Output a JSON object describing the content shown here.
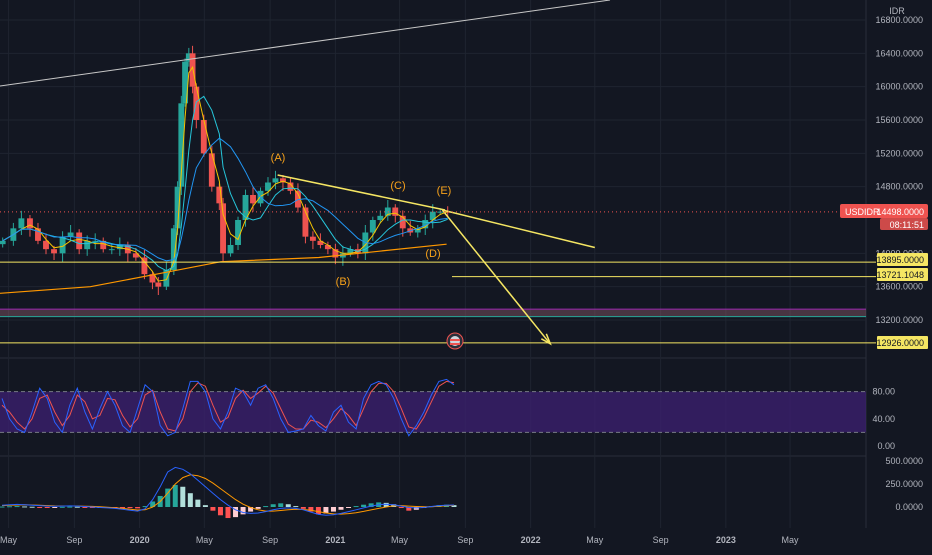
{
  "header": {
    "currency_label": "IDR"
  },
  "colors": {
    "background": "#131722",
    "grid": "#1f2430",
    "axis_text": "#b2b5be",
    "bull": "#26a69a",
    "bear": "#ef5350",
    "annotation": "#f5e663",
    "wave_label": "#f7a21b",
    "ma_orange": "#ff9800",
    "ma_blue": "#2196f3",
    "ma_teal": "#26c6da",
    "ma_yellow": "#f5c400",
    "stoch_k": "#2962ff",
    "stoch_d": "#ef5350",
    "stoch_band": "#3b1f6e",
    "price_badge": "#ef5350"
  },
  "price_badge": {
    "symbol": "USDIDR",
    "price": "14498.0000",
    "countdown": "08:11:51"
  },
  "annotations": {
    "levels": [
      "13895.0000",
      "13721.1048",
      "12926.0000"
    ],
    "wave_labels": [
      "(A)",
      "(B)",
      "(C)",
      "(D)",
      "(E)"
    ]
  },
  "chart_data": [
    {
      "type": "candlestick",
      "symbol": "USDIDR",
      "price_axis": {
        "ticks": [
          "16800.0000",
          "16400.0000",
          "16000.0000",
          "15600.0000",
          "15200.0000",
          "14800.0000",
          "14000.0000",
          "13600.0000",
          "13200.0000"
        ],
        "range": [
          12800,
          16900
        ]
      },
      "time_axis": {
        "ticks": [
          "May",
          "Sep",
          "2020",
          "May",
          "Sep",
          "2021",
          "May",
          "Sep",
          "2022",
          "May",
          "Sep",
          "2023",
          "May"
        ],
        "start": "2019-04-15",
        "end": "2023-09-20"
      },
      "series_close": [
        [
          "2019-04-20",
          14150
        ],
        [
          "2019-05-10",
          14300
        ],
        [
          "2019-05-25",
          14420
        ],
        [
          "2019-06-10",
          14300
        ],
        [
          "2019-06-25",
          14150
        ],
        [
          "2019-07-10",
          14050
        ],
        [
          "2019-07-25",
          14000
        ],
        [
          "2019-08-10",
          14200
        ],
        [
          "2019-08-25",
          14250
        ],
        [
          "2019-09-10",
          14050
        ],
        [
          "2019-09-25",
          14150
        ],
        [
          "2019-10-10",
          14150
        ],
        [
          "2019-10-25",
          14050
        ],
        [
          "2019-11-10",
          14050
        ],
        [
          "2019-11-25",
          14100
        ],
        [
          "2019-12-10",
          14000
        ],
        [
          "2019-12-25",
          13950
        ],
        [
          "2020-01-10",
          13750
        ],
        [
          "2020-01-25",
          13650
        ],
        [
          "2020-02-05",
          13600
        ],
        [
          "2020-02-20",
          13800
        ],
        [
          "2020-03-05",
          14300
        ],
        [
          "2020-03-12",
          14800
        ],
        [
          "2020-03-19",
          15800
        ],
        [
          "2020-03-26",
          16300
        ],
        [
          "2020-04-02",
          16400
        ],
        [
          "2020-04-09",
          16000
        ],
        [
          "2020-04-16",
          15600
        ],
        [
          "2020-04-30",
          15200
        ],
        [
          "2020-05-15",
          14800
        ],
        [
          "2020-05-29",
          14600
        ],
        [
          "2020-06-05",
          14000
        ],
        [
          "2020-06-19",
          14100
        ],
        [
          "2020-07-03",
          14400
        ],
        [
          "2020-07-17",
          14700
        ],
        [
          "2020-07-31",
          14600
        ],
        [
          "2020-08-14",
          14750
        ],
        [
          "2020-08-28",
          14850
        ],
        [
          "2020-09-11",
          14900
        ],
        [
          "2020-09-25",
          14850
        ],
        [
          "2020-10-09",
          14750
        ],
        [
          "2020-10-23",
          14550
        ],
        [
          "2020-11-06",
          14200
        ],
        [
          "2020-11-20",
          14150
        ],
        [
          "2020-12-04",
          14100
        ],
        [
          "2020-12-18",
          14050
        ],
        [
          "2021-01-01",
          13950
        ],
        [
          "2021-01-15",
          14000
        ],
        [
          "2021-01-29",
          14050
        ],
        [
          "2021-02-12",
          14000
        ],
        [
          "2021-02-26",
          14250
        ],
        [
          "2021-03-12",
          14400
        ],
        [
          "2021-03-26",
          14450
        ],
        [
          "2021-04-09",
          14550
        ],
        [
          "2021-04-23",
          14450
        ],
        [
          "2021-05-07",
          14300
        ],
        [
          "2021-05-21",
          14250
        ],
        [
          "2021-06-04",
          14300
        ],
        [
          "2021-06-18",
          14400
        ],
        [
          "2021-07-02",
          14500
        ],
        [
          "2021-07-16",
          14500
        ],
        [
          "2021-07-30",
          14498
        ]
      ],
      "drawn_lines": [
        {
          "from": [
            "2020-09-15",
            14940
          ],
          "to": [
            "2021-07-25",
            14520
          ]
        },
        {
          "from": [
            "2021-07-20",
            14520
          ],
          "to": [
            "2022-05-01",
            14070
          ]
        },
        {
          "from": [
            "2021-07-20",
            14520
          ],
          "to": [
            "2022-02-05",
            12926
          ]
        }
      ],
      "wave_points": [
        {
          "label": "(A)",
          "date": "2020-09-10",
          "price": 15140
        },
        {
          "label": "(B)",
          "date": "2021-01-10",
          "price": 13640
        },
        {
          "label": "(C)",
          "date": "2021-04-10",
          "price": 14670
        },
        {
          "label": "(D)",
          "date": "2021-06-28",
          "price": 13890
        },
        {
          "label": "(E)",
          "date": "2021-07-20",
          "price": 14630
        }
      ]
    },
    {
      "type": "line",
      "name": "stochastic",
      "y_ticks": [
        "80.00",
        "40.00",
        "0.00"
      ],
      "y_range": [
        0,
        100
      ],
      "band": [
        20,
        80
      ],
      "k_values": [
        70,
        40,
        25,
        20,
        50,
        85,
        70,
        35,
        20,
        60,
        85,
        50,
        25,
        55,
        80,
        60,
        30,
        20,
        55,
        90,
        80,
        30,
        15,
        20,
        55,
        95,
        95,
        80,
        40,
        25,
        50,
        85,
        80,
        60,
        85,
        90,
        70,
        40,
        20,
        22,
        25,
        45,
        30,
        22,
        50,
        60,
        35,
        25,
        70,
        90,
        95,
        90,
        70,
        40,
        15,
        30,
        50,
        75,
        95,
        98,
        90
      ],
      "d_values": [
        60,
        50,
        35,
        25,
        40,
        70,
        75,
        50,
        30,
        45,
        75,
        65,
        40,
        45,
        70,
        68,
        45,
        28,
        40,
        75,
        82,
        50,
        25,
        22,
        40,
        80,
        93,
        88,
        60,
        35,
        42,
        70,
        82,
        70,
        78,
        88,
        78,
        55,
        32,
        25,
        25,
        38,
        35,
        27,
        40,
        55,
        45,
        30,
        55,
        80,
        92,
        92,
        80,
        55,
        28,
        25,
        42,
        65,
        88,
        95,
        93
      ]
    },
    {
      "type": "bar",
      "name": "macd",
      "y_ticks": [
        "500.0000",
        "250.0000",
        "0.0000"
      ],
      "y_range": [
        -200,
        600
      ],
      "histogram": [
        5,
        8,
        10,
        6,
        3,
        -2,
        -5,
        -3,
        2,
        4,
        3,
        -2,
        -4,
        -3,
        -2,
        -6,
        -10,
        -12,
        -15,
        10,
        60,
        120,
        200,
        240,
        220,
        150,
        80,
        20,
        -40,
        -90,
        -120,
        -110,
        -80,
        -50,
        -20,
        10,
        30,
        40,
        30,
        10,
        -20,
        -50,
        -80,
        -70,
        -50,
        -30,
        -10,
        10,
        25,
        40,
        50,
        45,
        30,
        -10,
        -40,
        -30,
        -10,
        10,
        20,
        25,
        20
      ],
      "macd_line": [
        20,
        25,
        28,
        25,
        20,
        15,
        10,
        8,
        10,
        12,
        10,
        5,
        0,
        -5,
        -10,
        -15,
        -25,
        -35,
        -45,
        -20,
        80,
        220,
        380,
        430,
        410,
        360,
        290,
        220,
        150,
        80,
        20,
        -30,
        -60,
        -70,
        -65,
        -50,
        -30,
        -15,
        -10,
        -15,
        -30,
        -55,
        -80,
        -90,
        -85,
        -70,
        -50,
        -30,
        -10,
        10,
        25,
        30,
        25,
        10,
        -5,
        -10,
        -5,
        5,
        15,
        20,
        22
      ],
      "signal_line": [
        15,
        18,
        22,
        24,
        22,
        19,
        15,
        12,
        11,
        11,
        11,
        9,
        6,
        2,
        -3,
        -8,
        -15,
        -24,
        -33,
        -30,
        0,
        60,
        150,
        250,
        320,
        350,
        340,
        310,
        260,
        200,
        140,
        80,
        30,
        -5,
        -30,
        -45,
        -45,
        -38,
        -30,
        -25,
        -27,
        -35,
        -50,
        -65,
        -75,
        -77,
        -72,
        -62,
        -48,
        -32,
        -15,
        0,
        12,
        15,
        10,
        5,
        2,
        3,
        8,
        13,
        17
      ]
    }
  ]
}
